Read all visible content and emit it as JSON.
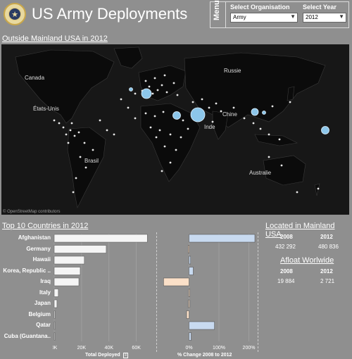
{
  "header": {
    "title": "US Army Deployments",
    "menu_label": "Menu",
    "org_filter": {
      "label": "Select Organisation",
      "value": "Army"
    },
    "year_filter": {
      "label": "Select Year",
      "value": "2012"
    }
  },
  "map": {
    "title": "Outside Mainland USA in 2012",
    "credit": "© OpenStreetMap contributors",
    "labels": [
      "Canada",
      "États-Unis",
      "Brasil",
      "Russie",
      "Chine",
      "Inde",
      "Australie"
    ]
  },
  "top10": {
    "title": "Top 10 Countries in 2012",
    "countries": [
      "Afghanistan",
      "Germany",
      "Hawaii",
      "Korea, Republic ..",
      "Iraq",
      "Italy",
      "Japan",
      "Belgium",
      "Qatar",
      "Cuba (Guantana.."
    ],
    "total_axis_title": "Total Deployed",
    "total_ticks": [
      "0K",
      "20K",
      "40K",
      "60K"
    ],
    "change_axis_title": "% Change 2008 to 2012",
    "change_ticks": [
      "0%",
      "100%",
      "200%"
    ]
  },
  "chart_data": [
    {
      "type": "bar",
      "title": "",
      "xlabel": "Total Deployed",
      "categories": [
        "Afghanistan",
        "Germany",
        "Hawaii",
        "Korea, Republic ..",
        "Iraq",
        "Italy",
        "Japan",
        "Belgium",
        "Qatar",
        "Cuba (Guantana.."
      ],
      "values": [
        68000,
        38000,
        22000,
        19000,
        18000,
        3000,
        2000,
        600,
        400,
        300
      ],
      "xlim": [
        0,
        72000
      ]
    },
    {
      "type": "bar",
      "title": "",
      "xlabel": "% Change 2008 to 2012",
      "categories": [
        "Afghanistan",
        "Germany",
        "Hawaii",
        "Korea, Republic ..",
        "Iraq",
        "Italy",
        "Japan",
        "Belgium",
        "Qatar",
        "Cuba (Guantana.."
      ],
      "values": [
        220,
        -3,
        5,
        14,
        -85,
        -1,
        -2,
        -8,
        85,
        7
      ],
      "xlim": [
        -100,
        220
      ]
    }
  ],
  "mainland": {
    "title": "Located in Mainland USA",
    "headers": [
      "2008",
      "2012"
    ],
    "values": [
      "432 292",
      "480 836"
    ]
  },
  "afloat": {
    "title": "Afloat Worlwide",
    "headers": [
      "2008",
      "2012"
    ],
    "values": [
      "19 884",
      "2 721"
    ]
  },
  "colors": {
    "positive_bar": "#c8daf0",
    "negative_bar": "#fbe0c8",
    "bubble": "#8cc6ea",
    "total_bar": "#f5f5f5"
  }
}
